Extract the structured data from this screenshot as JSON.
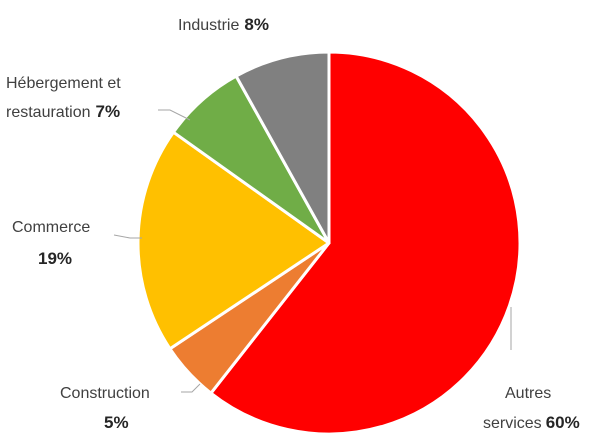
{
  "chart_data": {
    "type": "pie",
    "title": "",
    "slices": [
      {
        "name": "Autres services",
        "label_lines": [
          "Autres",
          "services"
        ],
        "value": 60,
        "pct_label": "60%",
        "color": "#ff0000"
      },
      {
        "name": "Construction",
        "label_lines": [
          "Construction"
        ],
        "value": 5,
        "pct_label": "5%",
        "color": "#ed7d31"
      },
      {
        "name": "Commerce",
        "label_lines": [
          "Commerce"
        ],
        "value": 19,
        "pct_label": "19%",
        "color": "#ffc000"
      },
      {
        "name": "Hébergement et restauration",
        "label_lines": [
          "Hébergement et",
          "restauration"
        ],
        "value": 7,
        "pct_label": "7%",
        "color": "#70ad47"
      },
      {
        "name": "Industrie",
        "label_lines": [
          "Industrie"
        ],
        "value": 8,
        "pct_label": "8%",
        "color": "#808080"
      }
    ],
    "start": "12 o'clock",
    "direction": "clockwise",
    "legend": "none",
    "data_labels": "outside with leader lines"
  }
}
